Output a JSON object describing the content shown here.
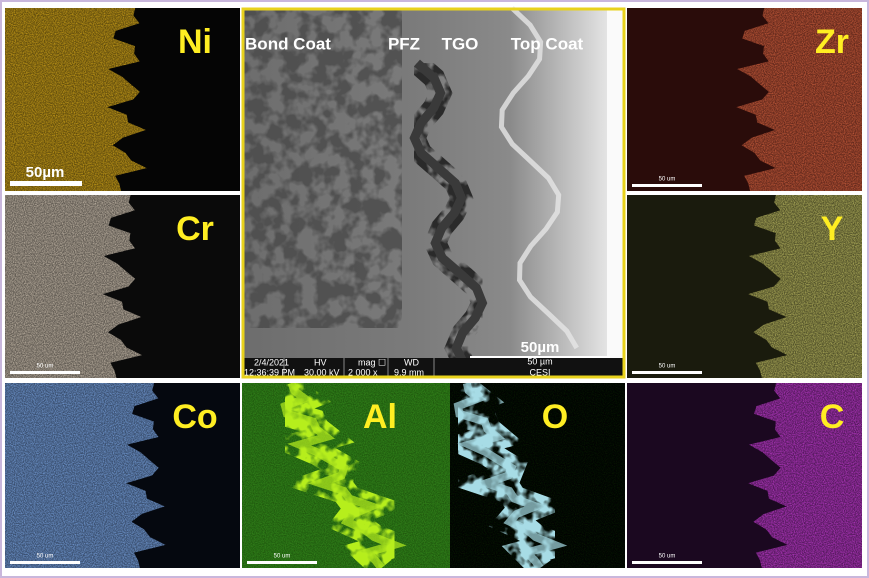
{
  "panels": [
    {
      "label": "Ni",
      "scale": "50µm"
    },
    {
      "label": "Cr",
      "scale": "50 um"
    },
    {
      "label": "Co",
      "scale": "50 um"
    },
    {
      "label": "Zr",
      "scale": "50 um"
    },
    {
      "label": "Y",
      "scale": "50 um"
    },
    {
      "label": "C",
      "scale": "50 um"
    },
    {
      "label": "Al",
      "scale": "50 um"
    },
    {
      "label": "O"
    }
  ],
  "sem": {
    "layers": [
      "Bond Coat",
      "PFZ",
      "TGO",
      "Top Coat"
    ],
    "scale": "50µm",
    "info": {
      "date": "2/4/2021",
      "time": "12:36:39 PM",
      "hv_label": "HV",
      "hv": "30.00 kV",
      "mag_label": "mag ☐",
      "mag": "2 000 x",
      "wd_label": "WD",
      "wd": "9.9 mm",
      "bar": "50 µm",
      "org": "CESI"
    }
  }
}
